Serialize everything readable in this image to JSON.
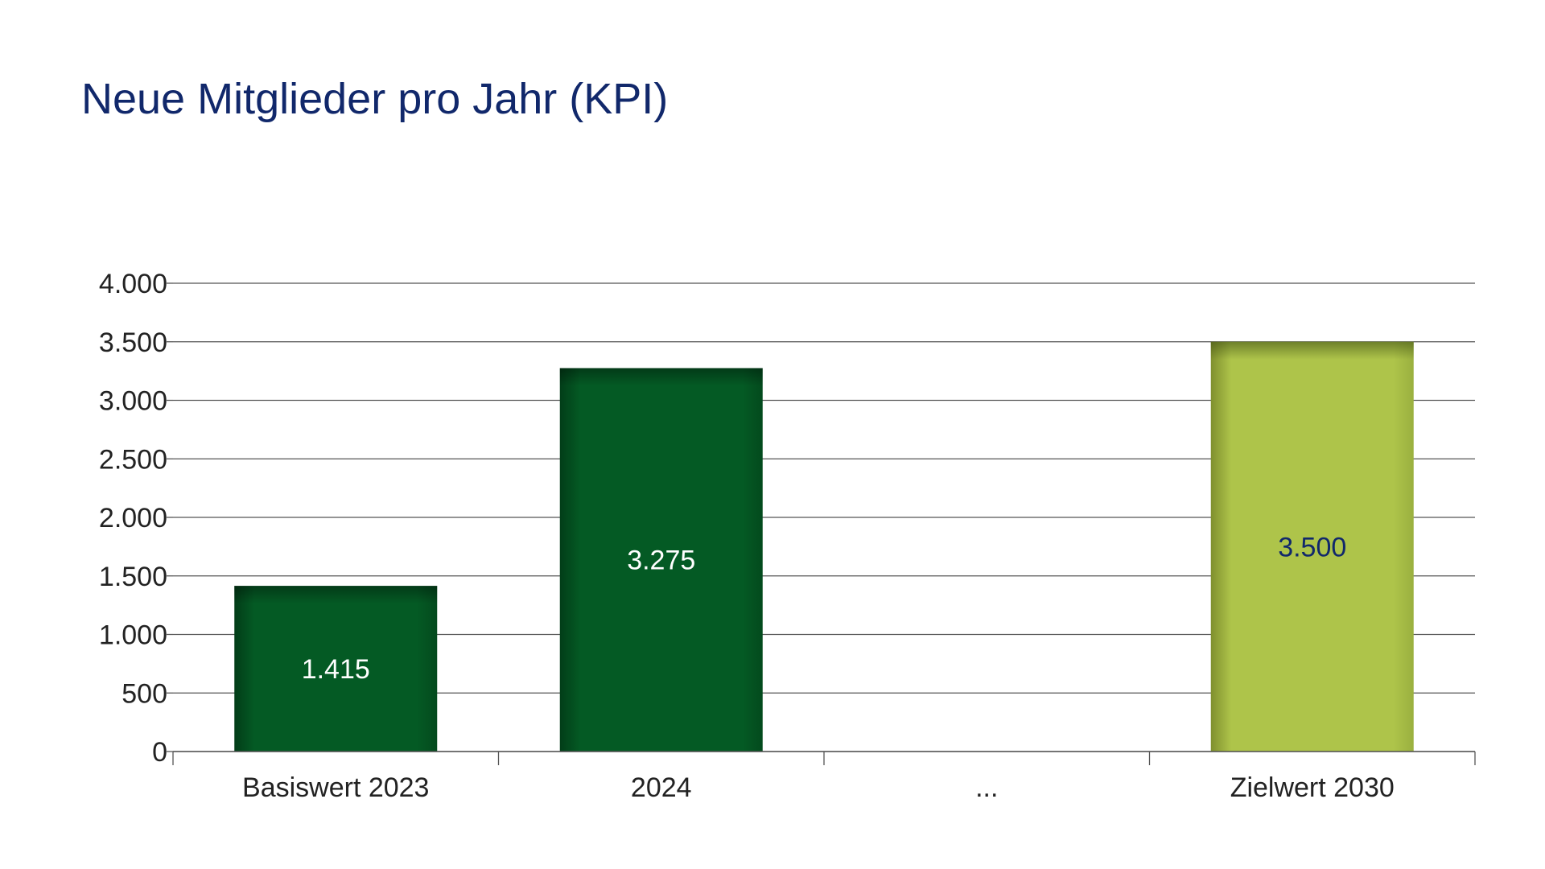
{
  "chart_data": {
    "type": "bar",
    "title": "Neue Mitglieder pro Jahr (KPI)",
    "categories": [
      "Basiswert 2023",
      "2024",
      "...",
      "Zielwert 2030"
    ],
    "values": [
      1415,
      3275,
      null,
      3500
    ],
    "data_labels": [
      "1.415",
      "3.275",
      "",
      "3.500"
    ],
    "bar_colors": [
      "#045a24",
      "#045a24",
      null,
      "#aec44a"
    ],
    "label_colors": [
      "#ffffff",
      "#ffffff",
      null,
      "#11286b"
    ],
    "ylim": [
      0,
      4000
    ],
    "yticks": [
      0,
      500,
      1000,
      1500,
      2000,
      2500,
      3000,
      3500,
      4000
    ],
    "ytick_labels": [
      "0",
      "500",
      "1.000",
      "1.500",
      "2.000",
      "2.500",
      "3.000",
      "3.500",
      "4.000"
    ],
    "grid": true,
    "legend": false
  }
}
